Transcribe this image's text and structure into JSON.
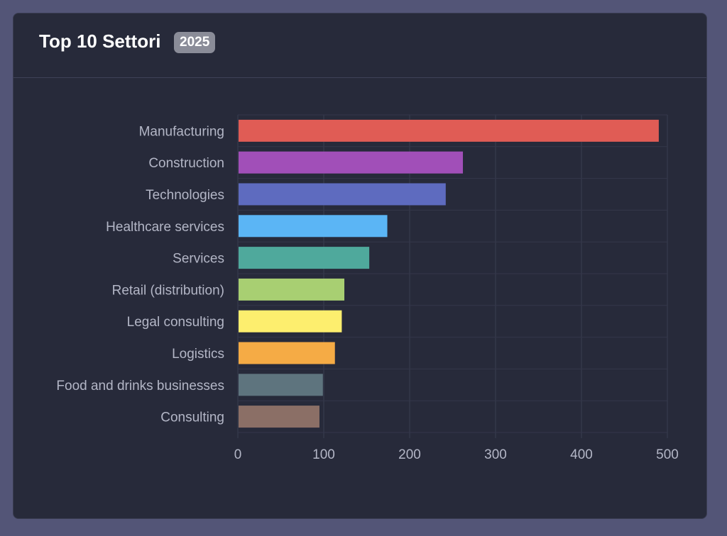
{
  "header": {
    "title": "Top 10 Settori",
    "badge": "2025"
  },
  "chart_data": {
    "type": "bar",
    "orientation": "horizontal",
    "categories": [
      "Manufacturing",
      "Construction",
      "Technologies",
      "Healthcare services",
      "Services",
      "Retail (distribution)",
      "Legal consulting",
      "Logistics",
      "Food and drinks businesses",
      "Consulting"
    ],
    "values": [
      490,
      262,
      242,
      174,
      153,
      124,
      121,
      113,
      99,
      95
    ],
    "colors": [
      "#e05c55",
      "#a14fb8",
      "#5e6bbf",
      "#5bb5f5",
      "#4fa99c",
      "#a8cf72",
      "#fdee6e",
      "#f5ab45",
      "#5e747e",
      "#8b6f66"
    ],
    "xlim": [
      0,
      500
    ],
    "xticks": [
      "0",
      "100",
      "200",
      "300",
      "400",
      "500"
    ],
    "grid": true,
    "title": "",
    "xlabel": "",
    "ylabel": ""
  }
}
